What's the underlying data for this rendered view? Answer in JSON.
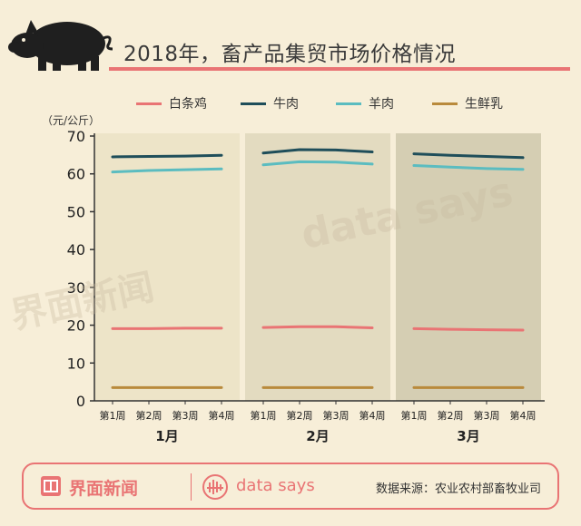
{
  "header": {
    "title": "2018年，畜产品集贸市场价格情况",
    "pig_icon": "pig-icon"
  },
  "legend": [
    {
      "name": "白条鸡",
      "color": "#e97474"
    },
    {
      "name": "牛肉",
      "color": "#1f4e5a"
    },
    {
      "name": "羊肉",
      "color": "#5bbcc0"
    },
    {
      "name": "生鲜乳",
      "color": "#b98a3c"
    }
  ],
  "unit": "（元/公斤）",
  "watermarks": {
    "brand": "界面新闻",
    "ds": "data says"
  },
  "chart_data": {
    "type": "line",
    "ylim": [
      0,
      70
    ],
    "yticks": [
      0,
      10,
      20,
      30,
      40,
      50,
      60,
      70
    ],
    "grid": false,
    "legend_position": "top",
    "panel_colors": [
      "#ede4c8",
      "#e3dbc0",
      "#d5ceb3"
    ],
    "months": [
      {
        "label": "1月",
        "weeks": [
          "第1周",
          "第2周",
          "第3周",
          "第4周"
        ]
      },
      {
        "label": "2月",
        "weeks": [
          "第1周",
          "第2周",
          "第3周",
          "第4周"
        ]
      },
      {
        "label": "3月",
        "weeks": [
          "第1周",
          "第2周",
          "第3周",
          "第4周"
        ]
      }
    ],
    "series": [
      {
        "name": "白条鸡",
        "color": "#e97474",
        "values": [
          [
            19.1,
            19.1,
            19.2,
            19.2
          ],
          [
            19.4,
            19.6,
            19.6,
            19.3
          ],
          [
            19.1,
            18.9,
            18.8,
            18.7
          ]
        ]
      },
      {
        "name": "牛肉",
        "color": "#1f4e5a",
        "values": [
          [
            64.5,
            64.6,
            64.7,
            64.9
          ],
          [
            65.5,
            66.4,
            66.3,
            65.8
          ],
          [
            65.3,
            64.9,
            64.6,
            64.3
          ]
        ]
      },
      {
        "name": "羊肉",
        "color": "#5bbcc0",
        "values": [
          [
            60.5,
            60.9,
            61.1,
            61.3
          ],
          [
            62.4,
            63.2,
            63.1,
            62.6
          ],
          [
            62.2,
            61.8,
            61.4,
            61.2
          ]
        ]
      },
      {
        "name": "生鲜乳",
        "color": "#b98a3c",
        "values": [
          [
            3.5,
            3.5,
            3.5,
            3.5
          ],
          [
            3.5,
            3.5,
            3.5,
            3.5
          ],
          [
            3.5,
            3.5,
            3.5,
            3.5
          ]
        ]
      }
    ]
  },
  "footer": {
    "brand": "界面新闻",
    "ds": "data says",
    "source": "数据来源：农业农村部畜牧业司"
  }
}
